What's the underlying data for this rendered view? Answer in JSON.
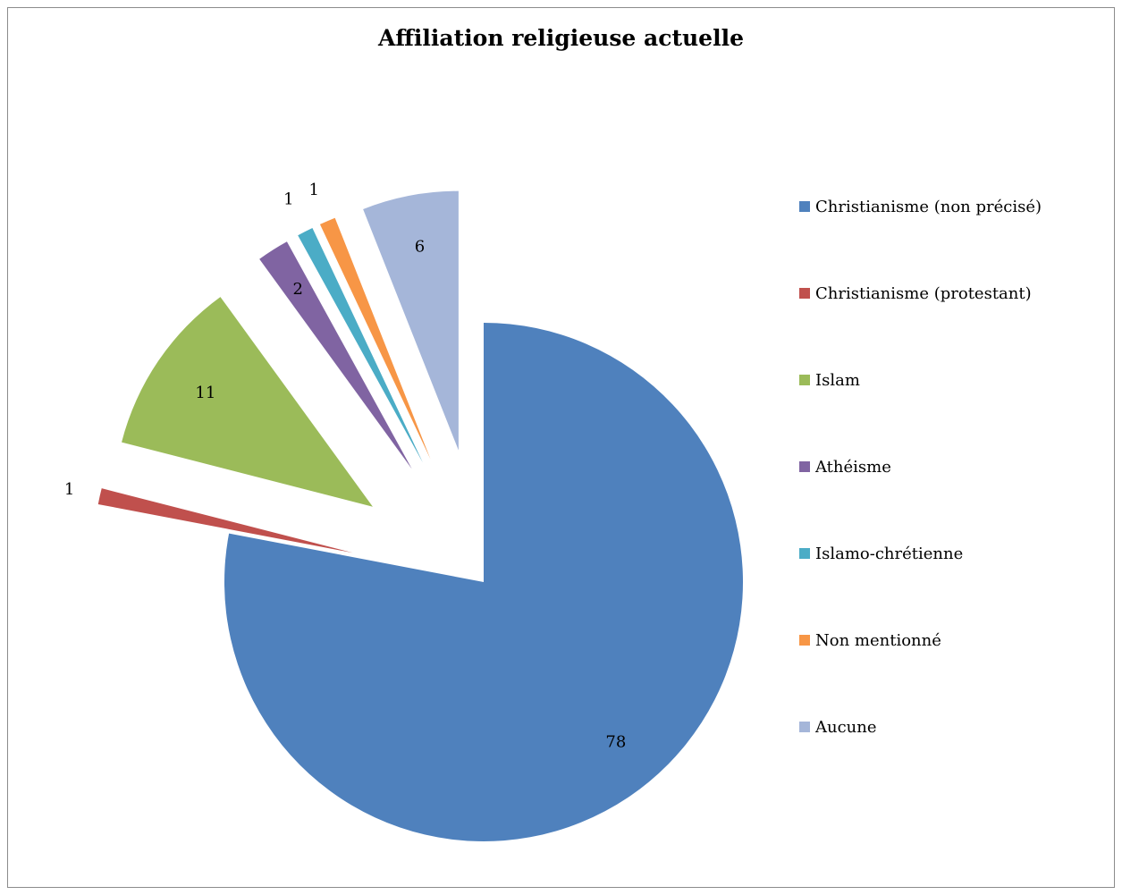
{
  "chart_data": {
    "type": "pie",
    "title": "Affiliation religieuse actuelle",
    "categories": [
      "Christianisme (non précisé)",
      "Christianisme (protestant)",
      "Islam",
      "Athéisme",
      "Islamo-chrétienne",
      "Non mentionné",
      "Aucune"
    ],
    "values": [
      78,
      1,
      11,
      2,
      1,
      1,
      6
    ],
    "data_labels": [
      "78",
      "1",
      "11",
      "2",
      "1",
      "1",
      "6"
    ],
    "colors": [
      "#4f81bd",
      "#c0504d",
      "#9bbb59",
      "#8064a2",
      "#4bacc6",
      "#f79646",
      "#a5b6d9"
    ],
    "exploded": [
      false,
      true,
      true,
      true,
      true,
      true,
      true
    ],
    "start_angle": "12 o'clock, clockwise",
    "legend_position": "right"
  }
}
